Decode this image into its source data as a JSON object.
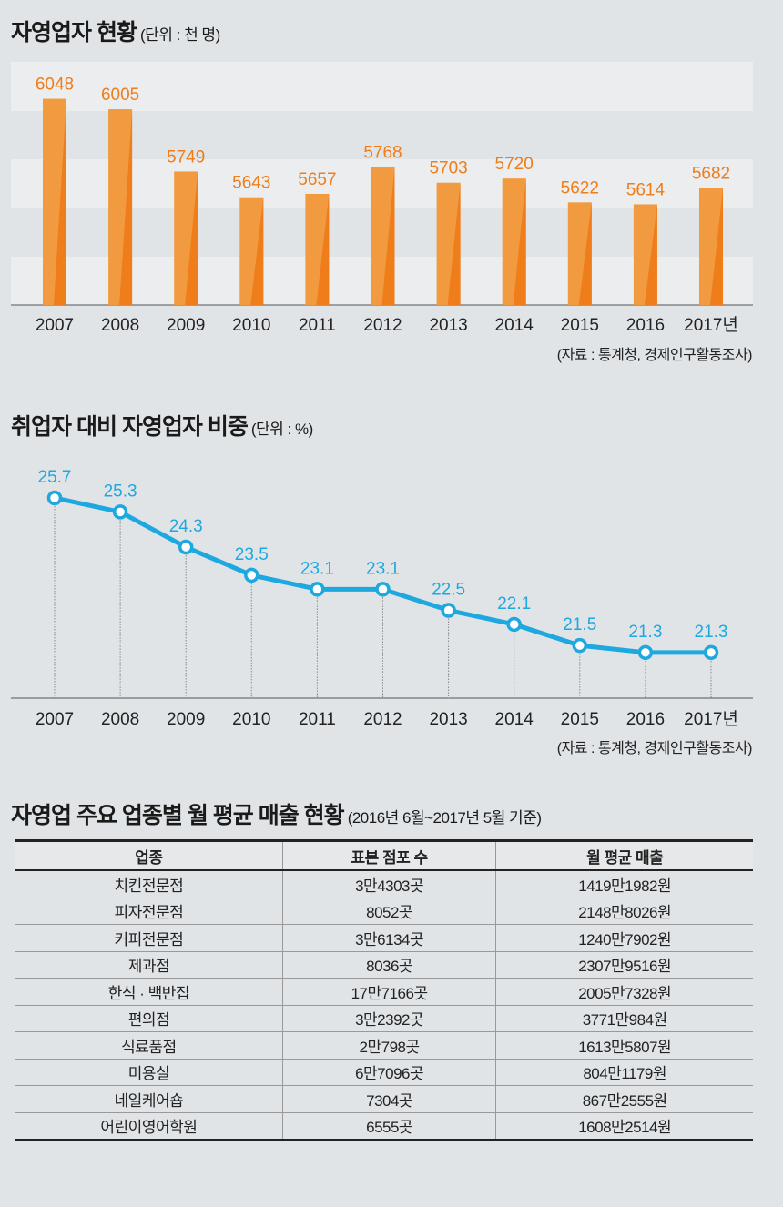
{
  "chart_data": [
    {
      "type": "bar",
      "title": "자영업자 현황",
      "unit": "(단위 : 천 명)",
      "categories": [
        "2007",
        "2008",
        "2009",
        "2010",
        "2011",
        "2012",
        "2013",
        "2014",
        "2015",
        "2016",
        "2017년"
      ],
      "values": [
        6048,
        6005,
        5749,
        5643,
        5657,
        5768,
        5703,
        5720,
        5622,
        5614,
        5682
      ],
      "ylim": [
        5200,
        6200
      ],
      "color": "#ee7d1a",
      "source": "(자료 : 통계청, 경제인구활동조사)"
    },
    {
      "type": "line",
      "title": "취업자 대비 자영업자 비중",
      "unit": "(단위 : %)",
      "categories": [
        "2007",
        "2008",
        "2009",
        "2010",
        "2011",
        "2012",
        "2013",
        "2014",
        "2015",
        "2016",
        "2017년"
      ],
      "values": [
        25.7,
        25.3,
        24.3,
        23.5,
        23.1,
        23.1,
        22.5,
        22.1,
        21.5,
        21.3,
        21.3
      ],
      "ylim": [
        20,
        26
      ],
      "color": "#1ea8e0",
      "source": "(자료 : 통계청, 경제인구활동조사)"
    },
    {
      "type": "table",
      "title": "자영업 주요 업종별 월 평균 매출 현황",
      "unit": "(2016년 6월~2017년 5월 기준)",
      "columns": [
        "업종",
        "표본 점포 수",
        "월 평균 매출"
      ],
      "rows": [
        [
          "치킨전문점",
          "3만4303곳",
          "1419만1982원"
        ],
        [
          "피자전문점",
          "8052곳",
          "2148만8026원"
        ],
        [
          "커피전문점",
          "3만6134곳",
          "1240만7902원"
        ],
        [
          "제과점",
          "8036곳",
          "2307만9516원"
        ],
        [
          "한식 · 백반집",
          "17만7166곳",
          "2005만7328원"
        ],
        [
          "편의점",
          "3만2392곳",
          "3771만984원"
        ],
        [
          "식료품점",
          "2만798곳",
          "1613만5807원"
        ],
        [
          "미용실",
          "6만7096곳",
          "804만1179원"
        ],
        [
          "네일케어숍",
          "7304곳",
          "867만2555원"
        ],
        [
          "어린이영어학원",
          "6555곳",
          "1608만2514원"
        ]
      ]
    }
  ]
}
